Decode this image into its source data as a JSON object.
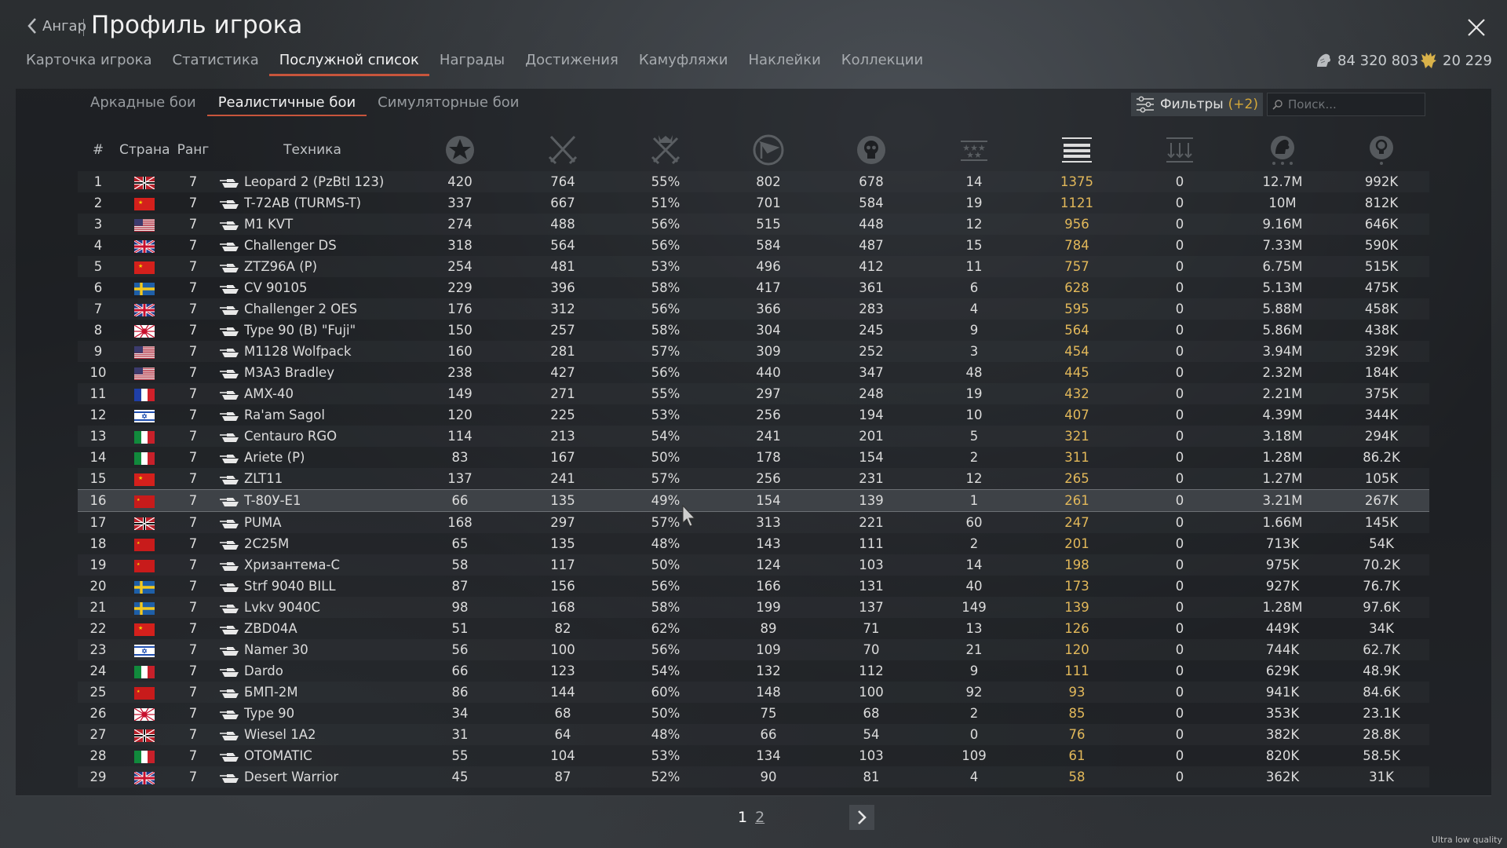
{
  "header": {
    "back_label": "Ангар",
    "title": "Профиль игрока"
  },
  "tabs": [
    {
      "label": "Карточка игрока",
      "active": false
    },
    {
      "label": "Статистика",
      "active": false
    },
    {
      "label": "Послужной список",
      "active": true
    },
    {
      "label": "Награды",
      "active": false
    },
    {
      "label": "Достижения",
      "active": false
    },
    {
      "label": "Камуфляжи",
      "active": false
    },
    {
      "label": "Наклейки",
      "active": false
    },
    {
      "label": "Коллекции",
      "active": false
    }
  ],
  "currency": {
    "silver": "84 320 803",
    "gold": "20 229"
  },
  "mode_tabs": [
    {
      "label": "Аркадные бои",
      "active": false
    },
    {
      "label": "Реалистичные бои",
      "active": true
    },
    {
      "label": "Симуляторные бои",
      "active": false
    }
  ],
  "filters": {
    "label": "Фильтры",
    "count": "(+2)"
  },
  "search": {
    "placeholder": "Поиск..."
  },
  "table": {
    "headers": {
      "num": "#",
      "country": "Страна",
      "rank": "Ранг",
      "vehicle": "Техника"
    },
    "icon_columns": [
      "respawns-icon",
      "battles-icon",
      "victories-icon",
      "missions-icon",
      "deaths-icon",
      "air-kills-icon",
      "ground-kills-icon",
      "naval-kills-icon",
      "silver-earned-icon",
      "research-points-icon"
    ],
    "selected_row": 16,
    "rows": [
      {
        "n": "1",
        "country": "germany",
        "rank": "7",
        "vehicle": "Leopard 2 (PzBtl 123)",
        "c1": "420",
        "c2": "764",
        "c3": "55%",
        "c4": "802",
        "c5": "678",
        "c6": "14",
        "c7": "1375",
        "c8": "0",
        "c9": "12.7M",
        "c10": "992K"
      },
      {
        "n": "2",
        "country": "china",
        "rank": "7",
        "vehicle": "T-72AB (TURMS-T)",
        "c1": "337",
        "c2": "667",
        "c3": "51%",
        "c4": "701",
        "c5": "584",
        "c6": "19",
        "c7": "1121",
        "c8": "0",
        "c9": "10M",
        "c10": "812K"
      },
      {
        "n": "3",
        "country": "usa",
        "rank": "7",
        "vehicle": "M1 KVT",
        "c1": "274",
        "c2": "488",
        "c3": "56%",
        "c4": "515",
        "c5": "448",
        "c6": "12",
        "c7": "956",
        "c8": "0",
        "c9": "9.16M",
        "c10": "646K"
      },
      {
        "n": "4",
        "country": "uk",
        "rank": "7",
        "vehicle": "Challenger DS",
        "c1": "318",
        "c2": "564",
        "c3": "56%",
        "c4": "584",
        "c5": "487",
        "c6": "15",
        "c7": "784",
        "c8": "0",
        "c9": "7.33M",
        "c10": "590K"
      },
      {
        "n": "5",
        "country": "china",
        "rank": "7",
        "vehicle": "ZTZ96A (P)",
        "c1": "254",
        "c2": "481",
        "c3": "53%",
        "c4": "496",
        "c5": "412",
        "c6": "11",
        "c7": "757",
        "c8": "0",
        "c9": "6.75M",
        "c10": "515K"
      },
      {
        "n": "6",
        "country": "sweden",
        "rank": "7",
        "vehicle": "CV 90105",
        "c1": "229",
        "c2": "396",
        "c3": "58%",
        "c4": "417",
        "c5": "361",
        "c6": "6",
        "c7": "628",
        "c8": "0",
        "c9": "5.13M",
        "c10": "475K"
      },
      {
        "n": "7",
        "country": "uk",
        "rank": "7",
        "vehicle": "Challenger 2 OES",
        "c1": "176",
        "c2": "312",
        "c3": "56%",
        "c4": "366",
        "c5": "283",
        "c6": "4",
        "c7": "595",
        "c8": "0",
        "c9": "5.88M",
        "c10": "458K"
      },
      {
        "n": "8",
        "country": "japan",
        "rank": "7",
        "vehicle": "Type 90 (B) \"Fuji\"",
        "c1": "150",
        "c2": "257",
        "c3": "58%",
        "c4": "304",
        "c5": "245",
        "c6": "9",
        "c7": "564",
        "c8": "0",
        "c9": "5.86M",
        "c10": "438K"
      },
      {
        "n": "9",
        "country": "usa",
        "rank": "7",
        "vehicle": "M1128 Wolfpack",
        "c1": "160",
        "c2": "281",
        "c3": "57%",
        "c4": "309",
        "c5": "252",
        "c6": "3",
        "c7": "454",
        "c8": "0",
        "c9": "3.94M",
        "c10": "329K"
      },
      {
        "n": "10",
        "country": "usa",
        "rank": "7",
        "vehicle": "M3A3 Bradley",
        "c1": "238",
        "c2": "427",
        "c3": "56%",
        "c4": "440",
        "c5": "347",
        "c6": "48",
        "c7": "445",
        "c8": "0",
        "c9": "2.32M",
        "c10": "184K"
      },
      {
        "n": "11",
        "country": "france",
        "rank": "7",
        "vehicle": "AMX-40",
        "c1": "149",
        "c2": "271",
        "c3": "55%",
        "c4": "297",
        "c5": "248",
        "c6": "19",
        "c7": "432",
        "c8": "0",
        "c9": "2.21M",
        "c10": "375K"
      },
      {
        "n": "12",
        "country": "israel",
        "rank": "7",
        "vehicle": "Ra'am Sagol",
        "c1": "120",
        "c2": "225",
        "c3": "53%",
        "c4": "256",
        "c5": "194",
        "c6": "10",
        "c7": "407",
        "c8": "0",
        "c9": "4.39M",
        "c10": "344K"
      },
      {
        "n": "13",
        "country": "italy",
        "rank": "7",
        "vehicle": "Centauro RGO",
        "c1": "114",
        "c2": "213",
        "c3": "54%",
        "c4": "241",
        "c5": "201",
        "c6": "5",
        "c7": "321",
        "c8": "0",
        "c9": "3.18M",
        "c10": "294K"
      },
      {
        "n": "14",
        "country": "italy",
        "rank": "7",
        "vehicle": "Ariete (P)",
        "c1": "83",
        "c2": "167",
        "c3": "50%",
        "c4": "178",
        "c5": "154",
        "c6": "2",
        "c7": "311",
        "c8": "0",
        "c9": "1.28M",
        "c10": "86.2K"
      },
      {
        "n": "15",
        "country": "china",
        "rank": "7",
        "vehicle": "ZLT11",
        "c1": "137",
        "c2": "241",
        "c3": "57%",
        "c4": "256",
        "c5": "231",
        "c6": "12",
        "c7": "265",
        "c8": "0",
        "c9": "1.27M",
        "c10": "105K"
      },
      {
        "n": "16",
        "country": "ussr",
        "rank": "7",
        "vehicle": "T-80У-E1",
        "c1": "66",
        "c2": "135",
        "c3": "49%",
        "c4": "154",
        "c5": "139",
        "c6": "1",
        "c7": "261",
        "c8": "0",
        "c9": "3.21M",
        "c10": "267K"
      },
      {
        "n": "17",
        "country": "germany",
        "rank": "7",
        "vehicle": "PUMA",
        "c1": "168",
        "c2": "297",
        "c3": "57%",
        "c4": "313",
        "c5": "221",
        "c6": "60",
        "c7": "247",
        "c8": "0",
        "c9": "1.66M",
        "c10": "145K"
      },
      {
        "n": "18",
        "country": "ussr",
        "rank": "7",
        "vehicle": "2С25М",
        "c1": "65",
        "c2": "135",
        "c3": "48%",
        "c4": "143",
        "c5": "111",
        "c6": "2",
        "c7": "201",
        "c8": "0",
        "c9": "713K",
        "c10": "54K"
      },
      {
        "n": "19",
        "country": "ussr",
        "rank": "7",
        "vehicle": "Хризантема-С",
        "c1": "58",
        "c2": "117",
        "c3": "50%",
        "c4": "124",
        "c5": "103",
        "c6": "14",
        "c7": "198",
        "c8": "0",
        "c9": "975K",
        "c10": "70.2K"
      },
      {
        "n": "20",
        "country": "sweden",
        "rank": "7",
        "vehicle": "Strf 9040 BILL",
        "c1": "87",
        "c2": "156",
        "c3": "56%",
        "c4": "166",
        "c5": "131",
        "c6": "40",
        "c7": "173",
        "c8": "0",
        "c9": "927K",
        "c10": "76.7K"
      },
      {
        "n": "21",
        "country": "sweden",
        "rank": "7",
        "vehicle": "Lvkv 9040C",
        "c1": "98",
        "c2": "168",
        "c3": "58%",
        "c4": "199",
        "c5": "137",
        "c6": "149",
        "c7": "139",
        "c8": "0",
        "c9": "1.28M",
        "c10": "97.6K"
      },
      {
        "n": "22",
        "country": "china",
        "rank": "7",
        "vehicle": "ZBD04A",
        "c1": "51",
        "c2": "82",
        "c3": "62%",
        "c4": "89",
        "c5": "71",
        "c6": "13",
        "c7": "126",
        "c8": "0",
        "c9": "449K",
        "c10": "34K"
      },
      {
        "n": "23",
        "country": "israel",
        "rank": "7",
        "vehicle": "Namer 30",
        "c1": "56",
        "c2": "100",
        "c3": "56%",
        "c4": "109",
        "c5": "70",
        "c6": "21",
        "c7": "120",
        "c8": "0",
        "c9": "744K",
        "c10": "62.7K"
      },
      {
        "n": "24",
        "country": "italy",
        "rank": "7",
        "vehicle": "Dardo",
        "c1": "66",
        "c2": "123",
        "c3": "54%",
        "c4": "132",
        "c5": "112",
        "c6": "9",
        "c7": "111",
        "c8": "0",
        "c9": "629K",
        "c10": "48.9K"
      },
      {
        "n": "25",
        "country": "ussr",
        "rank": "7",
        "vehicle": "БМП-2М",
        "c1": "86",
        "c2": "144",
        "c3": "60%",
        "c4": "148",
        "c5": "100",
        "c6": "92",
        "c7": "93",
        "c8": "0",
        "c9": "941K",
        "c10": "84.6K"
      },
      {
        "n": "26",
        "country": "japan",
        "rank": "7",
        "vehicle": "Type 90",
        "c1": "34",
        "c2": "68",
        "c3": "50%",
        "c4": "75",
        "c5": "68",
        "c6": "2",
        "c7": "85",
        "c8": "0",
        "c9": "353K",
        "c10": "23.1K"
      },
      {
        "n": "27",
        "country": "germany",
        "rank": "7",
        "vehicle": "Wiesel 1A2",
        "c1": "31",
        "c2": "64",
        "c3": "48%",
        "c4": "66",
        "c5": "54",
        "c6": "0",
        "c7": "76",
        "c8": "0",
        "c9": "382K",
        "c10": "28.8K"
      },
      {
        "n": "28",
        "country": "italy",
        "rank": "7",
        "vehicle": "OTOMATIC",
        "c1": "55",
        "c2": "104",
        "c3": "53%",
        "c4": "134",
        "c5": "103",
        "c6": "109",
        "c7": "61",
        "c8": "0",
        "c9": "820K",
        "c10": "58.5K"
      },
      {
        "n": "29",
        "country": "uk",
        "rank": "7",
        "vehicle": "Desert Warrior",
        "c1": "45",
        "c2": "87",
        "c3": "52%",
        "c4": "90",
        "c5": "81",
        "c6": "4",
        "c7": "58",
        "c8": "0",
        "c9": "362K",
        "c10": "31K"
      }
    ]
  },
  "pagination": {
    "current": "1",
    "other": "2"
  },
  "footer": {
    "quality": "Ultra low quality"
  },
  "colors": {
    "accent": "#c8553c",
    "highlight_column": "#e2b85a",
    "filter_count": "#d6a93a"
  }
}
